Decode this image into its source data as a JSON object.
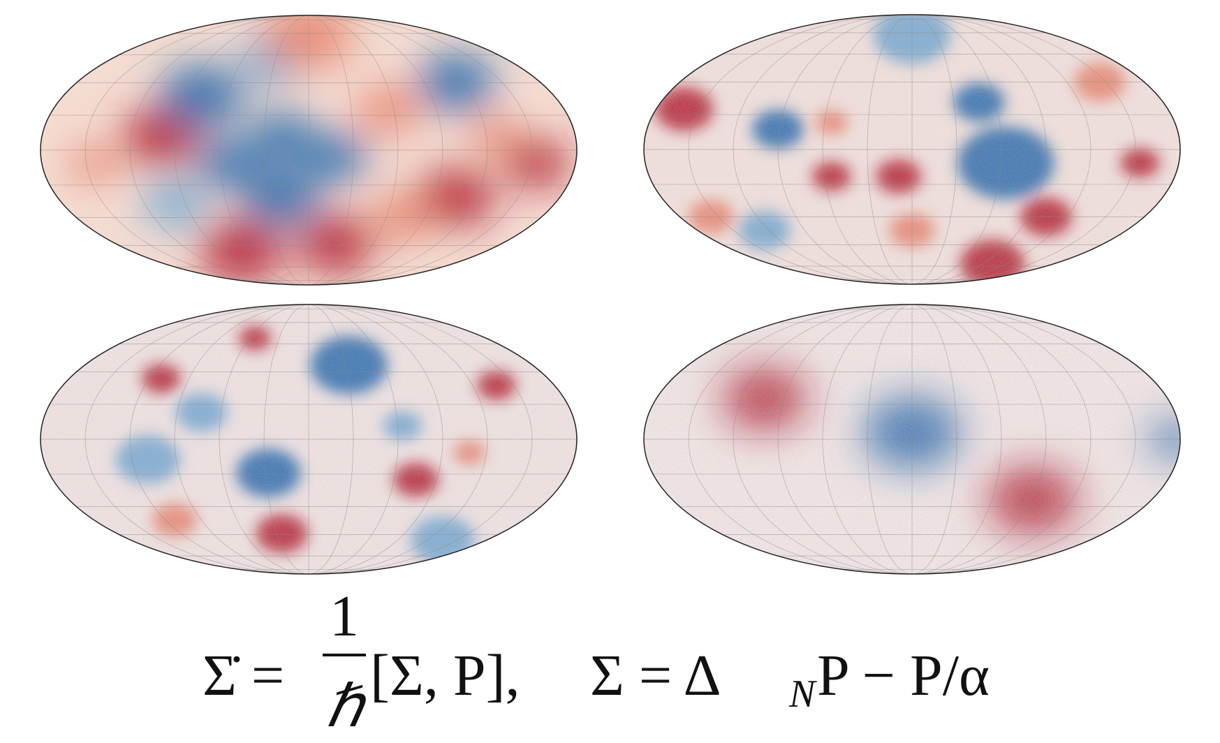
{
  "equation": {
    "part1": "Σ̇ =",
    "numerator": "1",
    "denominator": "ℏ",
    "part2": "[Σ, P],",
    "part3": "Σ = Δ",
    "subscript": "N",
    "part4": "P − P/α"
  }
}
